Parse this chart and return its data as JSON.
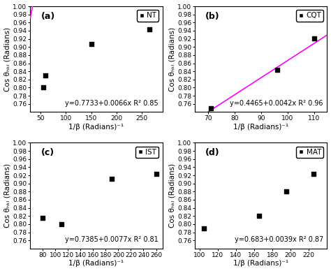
{
  "subplots": [
    {
      "label": "(a)",
      "legend": "NT",
      "x_data": [
        55,
        60,
        150,
        265
      ],
      "y_data": [
        0.801,
        0.83,
        0.907,
        0.943
      ],
      "xlim": [
        30,
        290
      ],
      "xticks": [
        50,
        100,
        150,
        200,
        250
      ],
      "ylim": [
        0.74,
        1.0
      ],
      "yticks": [
        0.76,
        0.78,
        0.8,
        0.82,
        0.84,
        0.86,
        0.88,
        0.9,
        0.92,
        0.94,
        0.96,
        0.98,
        1.0
      ],
      "equation": "y=0.7733+0.0066x R² 0.85",
      "intercept": 0.7733,
      "slope": 0.0066,
      "xlabel": "1/β (Radians)⁻¹",
      "ylabel": "Cos θₕₖₗ (Radians)"
    },
    {
      "label": "(b)",
      "legend": "CQT",
      "x_data": [
        71,
        96,
        110
      ],
      "y_data": [
        0.75,
        0.843,
        0.921
      ],
      "xlim": [
        65,
        115
      ],
      "xticks": [
        70,
        80,
        90,
        100,
        110
      ],
      "ylim": [
        0.74,
        1.0
      ],
      "yticks": [
        0.76,
        0.78,
        0.8,
        0.82,
        0.84,
        0.86,
        0.88,
        0.9,
        0.92,
        0.94,
        0.96,
        0.98,
        1.0
      ],
      "equation": "y=0.4465+0.0042x R² 0.96",
      "intercept": 0.4465,
      "slope": 0.0042,
      "xlabel": "1/β (Radians)⁻¹",
      "ylabel": "Cos θₕₖₗ (Radians)"
    },
    {
      "label": "(c)",
      "legend": "IST",
      "x_data": [
        80,
        110,
        190,
        260
      ],
      "y_data": [
        0.815,
        0.8,
        0.911,
        0.924
      ],
      "xlim": [
        60,
        270
      ],
      "xticks": [
        80,
        100,
        120,
        140,
        160,
        180,
        200,
        220,
        240,
        260
      ],
      "ylim": [
        0.74,
        1.0
      ],
      "yticks": [
        0.76,
        0.78,
        0.8,
        0.82,
        0.84,
        0.86,
        0.88,
        0.9,
        0.92,
        0.94,
        0.96,
        0.98,
        1.0
      ],
      "equation": "y=0.7385+0.0077x R² 0.81",
      "intercept": 0.7385,
      "slope": 0.0077,
      "xlabel": "1/β (Radians)⁻¹",
      "ylabel": "Cos θₕₖₗ (Radians)"
    },
    {
      "label": "(d)",
      "legend": "MAT",
      "x_data": [
        105,
        165,
        195,
        225
      ],
      "y_data": [
        0.79,
        0.82,
        0.88,
        0.924
      ],
      "xlim": [
        95,
        240
      ],
      "xticks": [
        100,
        120,
        140,
        160,
        180,
        200,
        220
      ],
      "ylim": [
        0.74,
        1.0
      ],
      "yticks": [
        0.76,
        0.78,
        0.8,
        0.82,
        0.84,
        0.86,
        0.88,
        0.9,
        0.92,
        0.94,
        0.96,
        0.98,
        1.0
      ],
      "equation": "y=0.683+0.0039x R² 0.87",
      "intercept": 0.683,
      "slope": 0.0039,
      "xlabel": "1/β (Radians)⁻¹",
      "ylabel": "Cos θₕₖₗ (Radians)"
    }
  ],
  "line_color": "#FF00FF",
  "marker_color": "black",
  "marker": "s",
  "marker_size": 5,
  "background_color": "#ffffff",
  "eq_fontsize": 7,
  "label_fontsize": 7.5,
  "tick_fontsize": 6.5,
  "legend_fontsize": 7.5
}
